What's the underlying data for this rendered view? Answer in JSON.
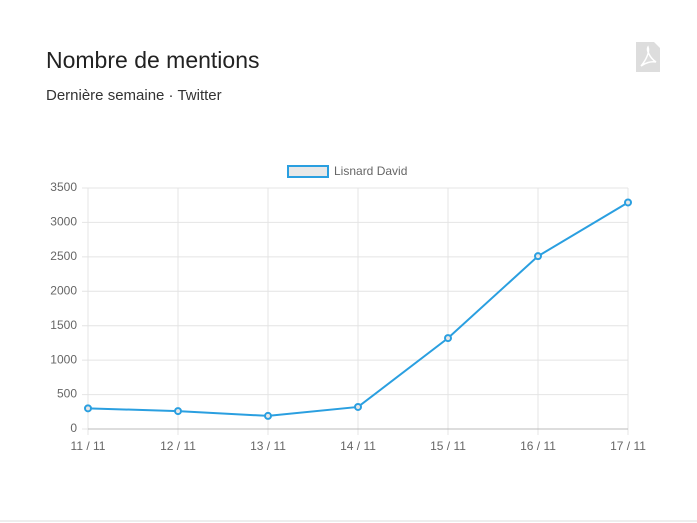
{
  "chart_data": {
    "type": "line",
    "title": "Nombre de mentions",
    "subtitle": "Dernière semaine · Twitter",
    "categories": [
      "11 / 11",
      "12 / 11",
      "13 / 11",
      "14 / 11",
      "15 / 11",
      "16 / 11",
      "17 / 11"
    ],
    "series": [
      {
        "name": "Lisnard David",
        "color": "#2a9fe0",
        "values": [
          300,
          260,
          190,
          320,
          1320,
          2510,
          3290
        ]
      }
    ],
    "ylim": [
      0,
      3500
    ],
    "yticks": [
      0,
      500,
      1000,
      1500,
      2000,
      2500,
      3000,
      3500
    ],
    "grid": true
  }
}
